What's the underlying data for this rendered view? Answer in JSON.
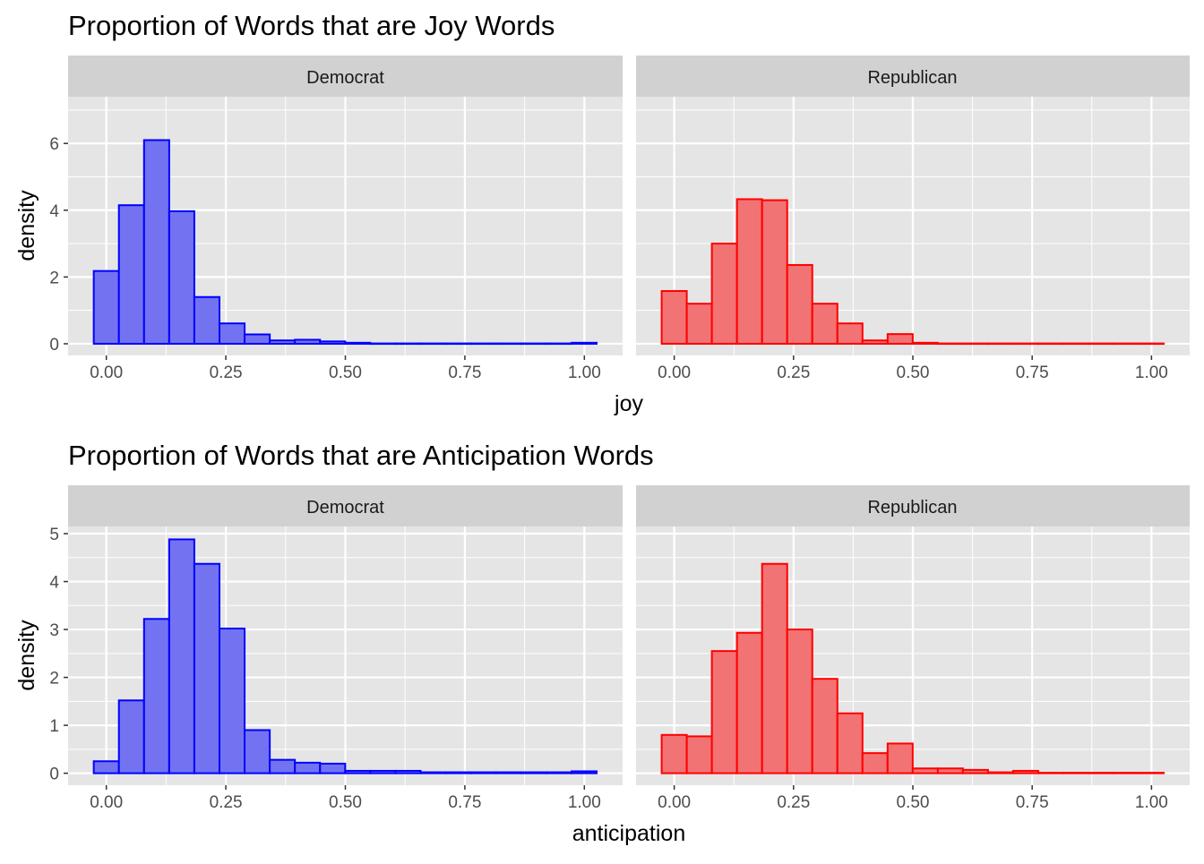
{
  "colors": {
    "democrat_fill": "#7373f2",
    "democrat_line": "#0000ff",
    "republican_fill": "#f27373",
    "republican_line": "#ff0000",
    "panel_background": "#e5e5e5",
    "strip_background": "#d1d1d1",
    "grid": "#ffffff"
  },
  "chart_data": [
    {
      "type": "bar",
      "title": "Proportion of Words that are Joy Words",
      "xlabel": "joy",
      "ylabel": "density",
      "xlim": [
        -0.08,
        1.08
      ],
      "ylim": [
        -0.35,
        7.4
      ],
      "x_ticks": [
        0,
        0.25,
        0.5,
        0.75,
        1.0
      ],
      "x_tick_labels": [
        "0.00",
        "0.25",
        "0.50",
        "0.75",
        "1.00"
      ],
      "y_ticks": [
        0,
        2,
        4,
        6
      ],
      "y_tick_labels": [
        "0",
        "2",
        "4",
        "6"
      ],
      "bin_width": 0.0526,
      "bin_start": -0.0263,
      "grid": true,
      "facets": [
        {
          "name": "Democrat",
          "values": [
            2.18,
            4.15,
            6.1,
            3.97,
            1.4,
            0.61,
            0.28,
            0.1,
            0.12,
            0.07,
            0.03,
            0.01,
            0.01,
            0.01,
            0.01,
            0.01,
            0.01,
            0.01,
            0.01,
            0.03
          ]
        },
        {
          "name": "Republican",
          "values": [
            1.58,
            1.2,
            3.0,
            4.33,
            4.3,
            2.36,
            1.2,
            0.61,
            0.1,
            0.29,
            0.03,
            0.01,
            0.01,
            0.01,
            0.01,
            0.01,
            0.01,
            0.01,
            0.01,
            0.01
          ]
        }
      ]
    },
    {
      "type": "bar",
      "title": "Proportion of Words that are Anticipation Words",
      "xlabel": "anticipation",
      "ylabel": "density",
      "xlim": [
        -0.08,
        1.08
      ],
      "ylim": [
        -0.25,
        5.15
      ],
      "x_ticks": [
        0,
        0.25,
        0.5,
        0.75,
        1.0
      ],
      "x_tick_labels": [
        "0.00",
        "0.25",
        "0.50",
        "0.75",
        "1.00"
      ],
      "y_ticks": [
        0,
        1,
        2,
        3,
        4,
        5
      ],
      "y_tick_labels": [
        "0",
        "1",
        "2",
        "3",
        "4",
        "5"
      ],
      "bin_width": 0.0526,
      "bin_start": -0.0263,
      "grid": true,
      "facets": [
        {
          "name": "Democrat",
          "values": [
            0.25,
            1.52,
            3.22,
            4.88,
            4.37,
            3.02,
            0.9,
            0.28,
            0.22,
            0.2,
            0.05,
            0.05,
            0.05,
            0.02,
            0.02,
            0.02,
            0.02,
            0.02,
            0.02,
            0.04
          ]
        },
        {
          "name": "Republican",
          "values": [
            0.8,
            0.77,
            2.55,
            2.93,
            4.37,
            3.0,
            1.97,
            1.25,
            0.42,
            0.62,
            0.1,
            0.1,
            0.07,
            0.02,
            0.05,
            0.01,
            0.01,
            0.01,
            0.01,
            0.01
          ]
        }
      ]
    }
  ]
}
